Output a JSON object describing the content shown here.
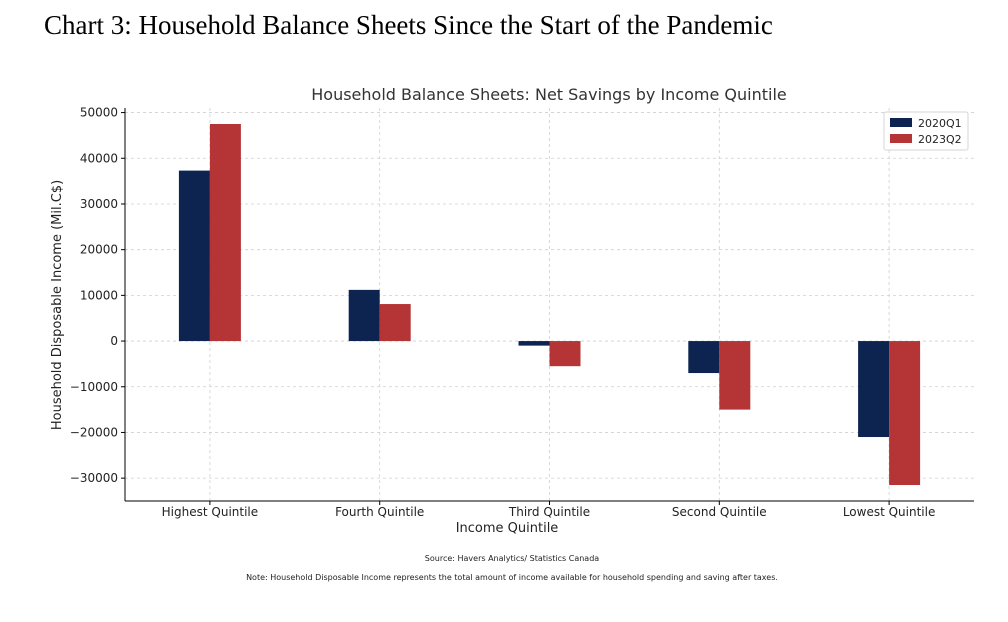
{
  "document_title": "Chart 3: Household Balance Sheets Since the Start of the Pandemic",
  "chart_data": {
    "type": "bar",
    "title": "Household Balance Sheets: Net Savings by Income Quintile",
    "xlabel": "Income Quintile",
    "ylabel": "Household Disposable Income (Mil.C$)",
    "categories": [
      "Highest Quintile",
      "Fourth Quintile",
      "Third Quintile",
      "Second Quintile",
      "Lowest Quintile"
    ],
    "series": [
      {
        "name": "2020Q1",
        "color": "#0d2451",
        "values": [
          37300,
          11200,
          -1000,
          -7000,
          -21000
        ]
      },
      {
        "name": "2023Q2",
        "color": "#b53536",
        "values": [
          47500,
          8100,
          -5500,
          -15000,
          -31500
        ]
      }
    ],
    "ylim": [
      -35000,
      51000
    ],
    "yticks": [
      -30000,
      -20000,
      -10000,
      0,
      10000,
      20000,
      30000,
      40000,
      50000
    ],
    "ytick_labels": [
      "−30000",
      "−20000",
      "−10000",
      "0",
      "10000",
      "20000",
      "30000",
      "40000",
      "50000"
    ],
    "grid": true,
    "legend_position": "top-right"
  },
  "notes": {
    "source": "Source: Havers Analytics/ Statistics Canada",
    "note": "Note: Household Disposable Income represents the total amount of income available for household spending and saving after taxes."
  }
}
